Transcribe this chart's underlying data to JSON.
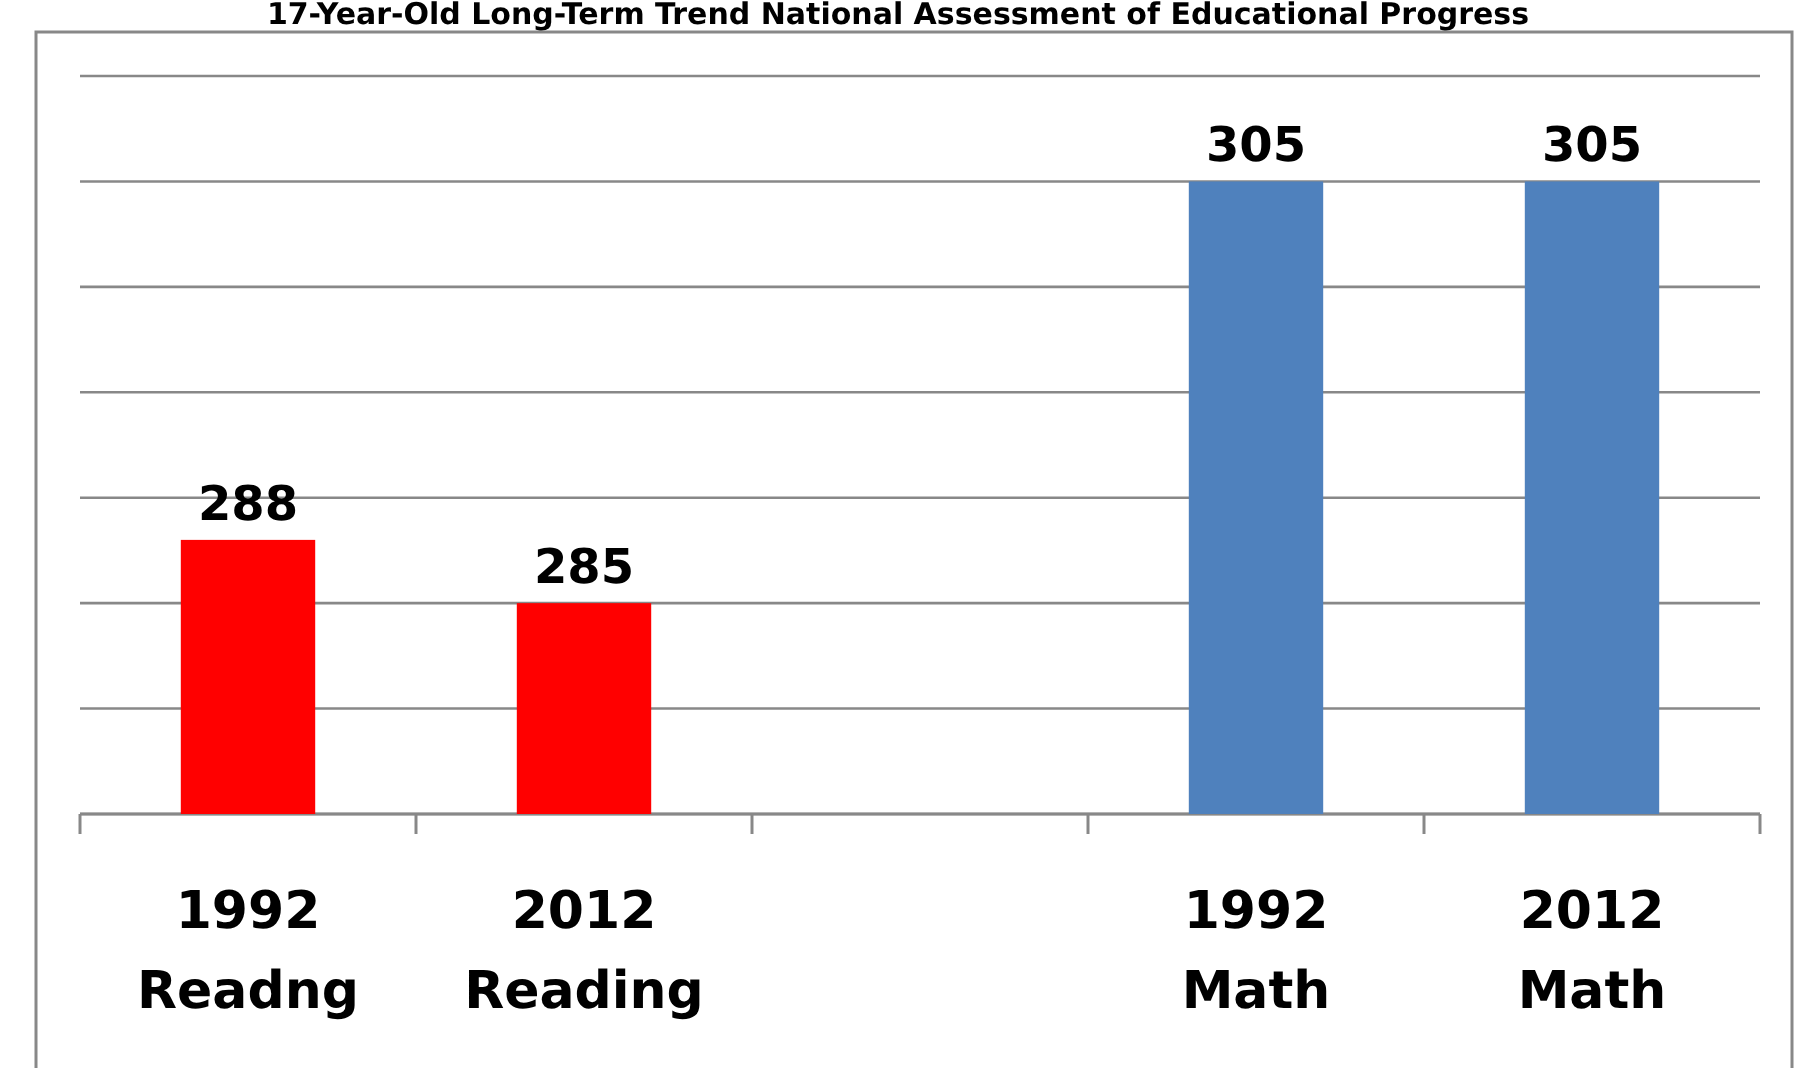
{
  "chart_data": {
    "type": "bar",
    "title": "17-Year-Old Long-Term Trend National Assessment of Educational Progress",
    "categories": [
      "1992 Readng",
      "2012 Reading",
      null,
      "1992 Math",
      "2012 Math"
    ],
    "values": [
      288,
      285,
      null,
      305,
      305
    ],
    "colors": [
      "#ff0000",
      "#ff0000",
      null,
      "#4f81bd",
      "#4f81bd"
    ],
    "ylim": [
      275,
      310
    ],
    "yticks": [
      {
        "value": 275,
        "label": null
      },
      {
        "value": 280,
        "label": null
      },
      {
        "value": 285,
        "label": null
      },
      {
        "value": 290,
        "label": null
      },
      {
        "value": 295,
        "label": null
      },
      {
        "value": 300,
        "label": null
      },
      {
        "value": 305,
        "label": null
      },
      {
        "value": 310,
        "label": null
      }
    ],
    "grid": "y",
    "data_labels": true,
    "tick_labels": "x"
  }
}
